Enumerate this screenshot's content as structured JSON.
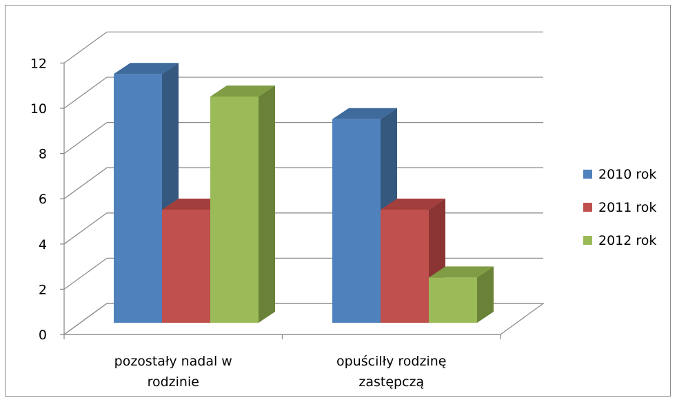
{
  "chart_data": {
    "type": "bar",
    "title": "",
    "xlabel": "",
    "ylabel": "",
    "ylim": [
      0,
      12
    ],
    "yticks": [
      "0",
      "2",
      "4",
      "6",
      "8",
      "10",
      "12"
    ],
    "categories": [
      [
        "pozostały nadal w",
        "rodzinie"
      ],
      [
        "opuścilły rodzinę",
        "zastępczą"
      ]
    ],
    "series": [
      {
        "name": "2010 rok",
        "values": [
          11,
          9
        ],
        "color": "#4f81bd",
        "side_color": "#35587f",
        "top_color": "#3f6a9c"
      },
      {
        "name": "2011 rok",
        "values": [
          5,
          5
        ],
        "color": "#c0504d",
        "side_color": "#8a3533",
        "top_color": "#a23f3c"
      },
      {
        "name": "2012 rok",
        "values": [
          10,
          2
        ],
        "color": "#9bbb59",
        "side_color": "#6a8238",
        "top_color": "#809c45"
      }
    ],
    "grid": true,
    "legend_position": "right",
    "style": "3d-clustered-column"
  }
}
